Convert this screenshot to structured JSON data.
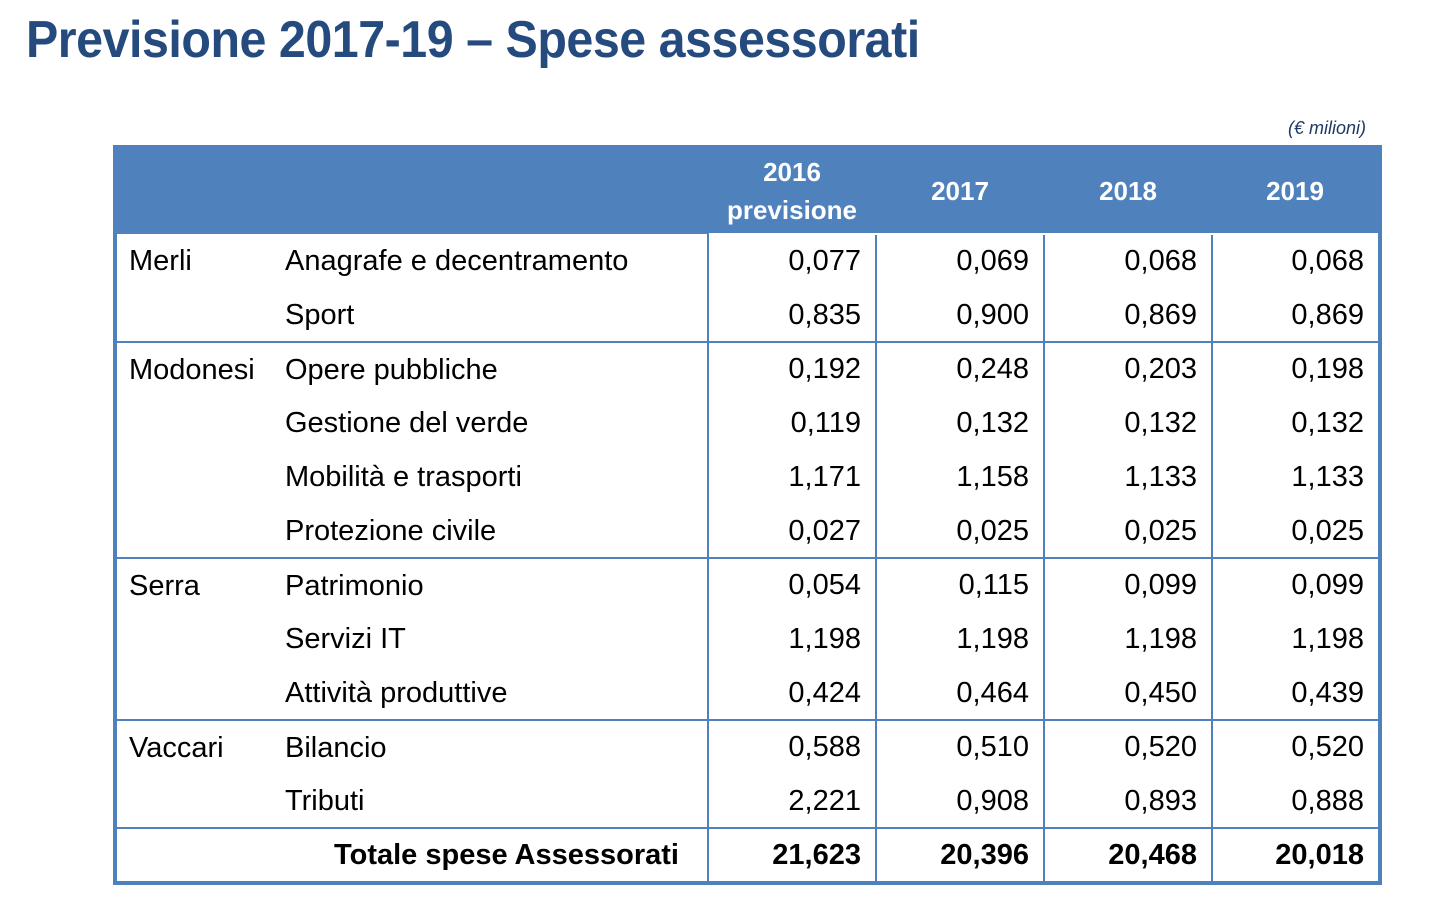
{
  "title": "Previsione 2017-19 – Spese assessorati",
  "unit_note": "(€ milioni)",
  "colors": {
    "title": "#254a7d",
    "header_bg": "#4f81bd",
    "header_text": "#ffffff",
    "border": "#4f81bd"
  },
  "table": {
    "headers": {
      "col2016_line1": "2016",
      "col2016_line2": "previsione",
      "col2017": "2017",
      "col2018": "2018",
      "col2019": "2019"
    },
    "rows": [
      {
        "assessore": "Merli",
        "categoria": "Anagrafe e decentramento",
        "v2016": "0,077",
        "v2017": "0,069",
        "v2018": "0,068",
        "v2019": "0,068"
      },
      {
        "assessore": "",
        "categoria": "Sport",
        "v2016": "0,835",
        "v2017": "0,900",
        "v2018": "0,869",
        "v2019": "0,869"
      },
      {
        "assessore": "Modonesi",
        "categoria": "Opere pubbliche",
        "v2016": "0,192",
        "v2017": "0,248",
        "v2018": "0,203",
        "v2019": "0,198"
      },
      {
        "assessore": "",
        "categoria": "Gestione del verde",
        "v2016": "0,119",
        "v2017": "0,132",
        "v2018": "0,132",
        "v2019": "0,132"
      },
      {
        "assessore": "",
        "categoria": "Mobilità e trasporti",
        "v2016": "1,171",
        "v2017": "1,158",
        "v2018": "1,133",
        "v2019": "1,133"
      },
      {
        "assessore": "",
        "categoria": "Protezione civile",
        "v2016": "0,027",
        "v2017": "0,025",
        "v2018": "0,025",
        "v2019": "0,025"
      },
      {
        "assessore": "Serra",
        "categoria": "Patrimonio",
        "v2016": "0,054",
        "v2017": "0,115",
        "v2018": "0,099",
        "v2019": "0,099"
      },
      {
        "assessore": "",
        "categoria": "Servizi IT",
        "v2016": "1,198",
        "v2017": "1,198",
        "v2018": "1,198",
        "v2019": "1,198"
      },
      {
        "assessore": "",
        "categoria": "Attività produttive",
        "v2016": "0,424",
        "v2017": "0,464",
        "v2018": "0,450",
        "v2019": "0,439"
      },
      {
        "assessore": "Vaccari",
        "categoria": "Bilancio",
        "v2016": "0,588",
        "v2017": "0,510",
        "v2018": "0,520",
        "v2019": "0,520"
      },
      {
        "assessore": "",
        "categoria": "Tributi",
        "v2016": "2,221",
        "v2017": "0,908",
        "v2018": "0,893",
        "v2019": "0,888"
      }
    ],
    "total": {
      "label": "Totale spese Assessorati",
      "v2016": "21,623",
      "v2017": "20,396",
      "v2018": "20,468",
      "v2019": "20,018"
    }
  }
}
